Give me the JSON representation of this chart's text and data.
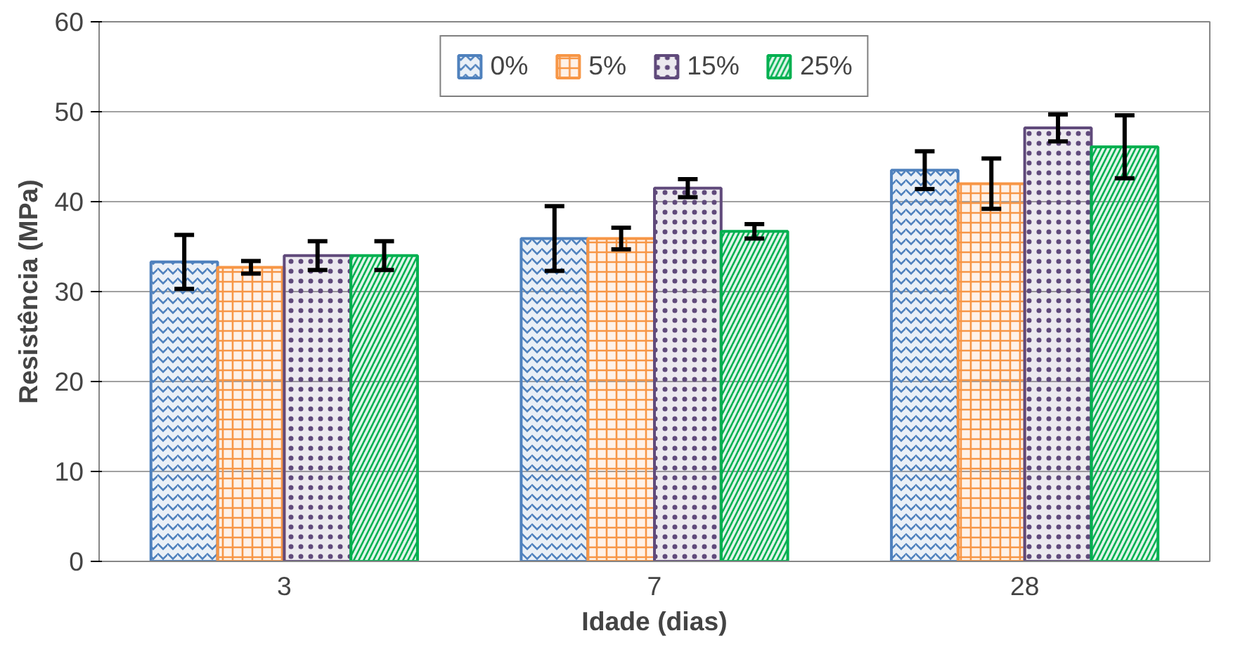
{
  "chart_data": {
    "type": "bar",
    "xlabel": "Idade (dias)",
    "ylabel": "Resistência (MPa)",
    "categories": [
      "3",
      "7",
      "28"
    ],
    "series": [
      {
        "name": "0%",
        "color": "#4f81bd",
        "values": [
          33.3,
          35.9,
          43.5
        ],
        "errors": [
          3.0,
          3.6,
          2.1
        ]
      },
      {
        "name": "5%",
        "color": "#f79646",
        "values": [
          32.7,
          35.9,
          42.0
        ],
        "errors": [
          0.7,
          1.2,
          2.8
        ]
      },
      {
        "name": "15%",
        "color": "#604a7b",
        "values": [
          34.0,
          41.5,
          48.2
        ],
        "errors": [
          1.6,
          1.0,
          1.5
        ]
      },
      {
        "name": "25%",
        "color": "#00b050",
        "values": [
          34.0,
          36.7,
          46.1
        ],
        "errors": [
          1.6,
          0.8,
          3.5
        ]
      }
    ],
    "ylim": [
      0,
      60
    ],
    "yticks": [
      0,
      10,
      20,
      30,
      40,
      50,
      60
    ],
    "grid": "y",
    "legend": "top"
  }
}
